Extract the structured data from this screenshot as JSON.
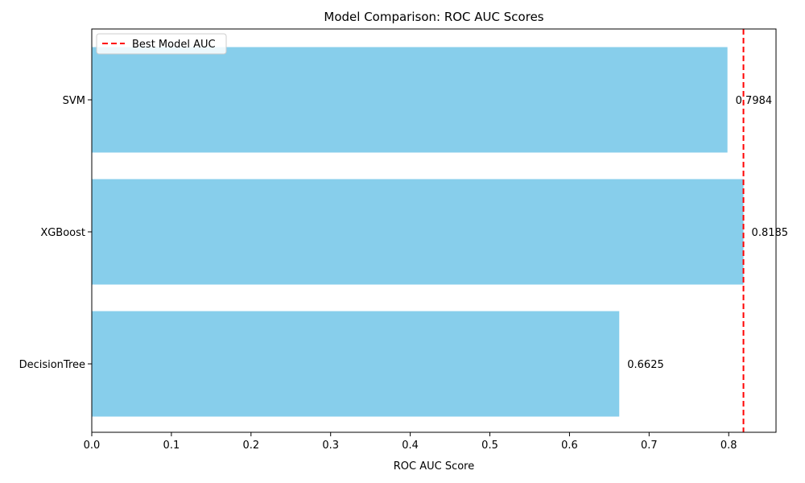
{
  "chart_data": {
    "type": "bar",
    "orientation": "horizontal",
    "title": "Model Comparison: ROC AUC Scores",
    "xlabel": "ROC AUC Score",
    "ylabel": "",
    "categories": [
      "SVM",
      "XGBoost",
      "DecisionTree"
    ],
    "values": [
      0.7984,
      0.8185,
      0.6625
    ],
    "data_labels": [
      "0.7984",
      "0.8185",
      "0.6625"
    ],
    "xlim": [
      0,
      0.8594
    ],
    "xticks": [
      0.0,
      0.1,
      0.2,
      0.3,
      0.4,
      0.5,
      0.6,
      0.7,
      0.8
    ],
    "xtick_labels": [
      "0.0",
      "0.1",
      "0.2",
      "0.3",
      "0.4",
      "0.5",
      "0.6",
      "0.7",
      "0.8"
    ],
    "grid": false,
    "bar_color": "#87CEEB",
    "reference_line": {
      "value": 0.8185,
      "label": "Best Model AUC",
      "color": "#FF0000",
      "style": "dashed"
    },
    "legend": {
      "placement": "top-left",
      "entries": [
        "Best Model AUC"
      ]
    }
  }
}
